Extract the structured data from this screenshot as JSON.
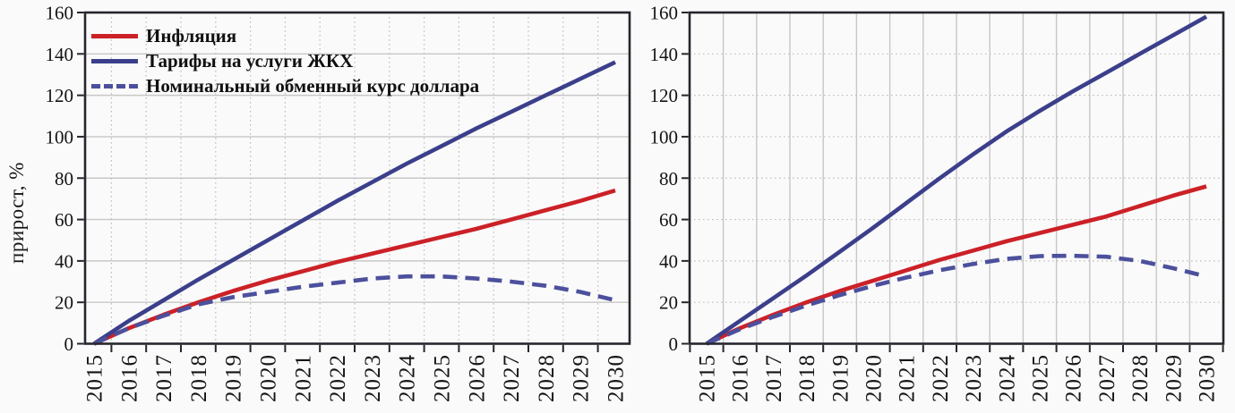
{
  "figure": {
    "ylabel": "прирост, %",
    "colors": {
      "inflation": "#cb2127",
      "tariff": "#3b3f8b",
      "dollar": "#4c509c",
      "axis": "#26262e",
      "grid_solid": "#c7c7c7",
      "grid_dotted": "#bfbfbf",
      "text": "#141414"
    },
    "legend": {
      "items": [
        {
          "label": "Инфляция",
          "series": "inflation",
          "style": "solid"
        },
        {
          "label": "Тарифы на услуги ЖКХ",
          "series": "tariff",
          "style": "solid"
        },
        {
          "label": "Номинальный обменный курс доллара",
          "series": "dollar",
          "style": "dashed"
        }
      ]
    }
  },
  "chart_data": [
    {
      "type": "line",
      "panel": "left",
      "title": "",
      "xlabel": "",
      "ylabel": "прирост, %",
      "x": [
        2015,
        2016,
        2017,
        2018,
        2019,
        2020,
        2021,
        2022,
        2023,
        2024,
        2025,
        2026,
        2027,
        2028,
        2029,
        2030
      ],
      "xticklabels": [
        "2015",
        "2016",
        "2017",
        "2018",
        "2019",
        "2020",
        "2021",
        "2022",
        "2023",
        "2024",
        "2025",
        "2026",
        "2027",
        "2028",
        "2029",
        "2030"
      ],
      "ylim": [
        0,
        160
      ],
      "yticks": [
        0,
        20,
        40,
        60,
        80,
        100,
        120,
        140,
        160
      ],
      "grid": {
        "horizontal": "solid",
        "vertical": "dotted"
      },
      "legend_position": "top-left",
      "series": [
        {
          "name": "Инфляция",
          "key": "inflation",
          "color": "#cb2127",
          "line": "solid",
          "values": [
            0,
            7.5,
            14,
            20,
            25.5,
            30.5,
            35,
            39.5,
            43.5,
            47.5,
            51.5,
            55.5,
            60,
            64.5,
            69,
            74
          ]
        },
        {
          "name": "Тарифы на услуги ЖКХ",
          "key": "tariff",
          "color": "#3b3f8b",
          "line": "solid",
          "values": [
            0,
            11,
            21,
            31,
            40.5,
            50,
            59.5,
            69,
            78,
            87,
            95.5,
            104,
            112,
            120,
            128,
            136
          ]
        },
        {
          "name": "Номинальный обменный курс доллара",
          "key": "dollar",
          "color": "#4c509c",
          "line": "dashed",
          "values": [
            0,
            7.5,
            13.5,
            19,
            22.5,
            25,
            27.5,
            29.5,
            31.5,
            32.5,
            32.5,
            31.5,
            30,
            28,
            25,
            21
          ]
        }
      ]
    },
    {
      "type": "line",
      "panel": "right",
      "title": "",
      "xlabel": "",
      "ylabel": "",
      "x": [
        2015,
        2016,
        2017,
        2018,
        2019,
        2020,
        2021,
        2022,
        2023,
        2024,
        2025,
        2026,
        2027,
        2028,
        2029,
        2030
      ],
      "xticklabels": [
        "2015",
        "2016",
        "2017",
        "2018",
        "2019",
        "2020",
        "2021",
        "2022",
        "2023",
        "2024",
        "2025",
        "2026",
        "2027",
        "2028",
        "2029",
        "2030"
      ],
      "ylim": [
        0,
        160
      ],
      "yticks": [
        0,
        20,
        40,
        60,
        80,
        100,
        120,
        140,
        160
      ],
      "grid": {
        "horizontal": "dotted",
        "vertical": "solid"
      },
      "legend_position": "none",
      "series": [
        {
          "name": "Инфляция",
          "key": "inflation",
          "color": "#cb2127",
          "line": "solid",
          "values": [
            0,
            7.5,
            14,
            20,
            25.5,
            30.5,
            35.5,
            40.5,
            45,
            49.5,
            53.5,
            57.5,
            61.5,
            66.5,
            71.5,
            76
          ]
        },
        {
          "name": "Тарифы на услуги ЖКХ",
          "key": "tariff",
          "color": "#3b3f8b",
          "line": "solid",
          "values": [
            0,
            11,
            22,
            33,
            44.5,
            56,
            68,
            80,
            91.5,
            102.5,
            112.5,
            122,
            131,
            140,
            149,
            158
          ]
        },
        {
          "name": "Номинальный обменный курс доллара",
          "key": "dollar",
          "color": "#4c509c",
          "line": "dashed",
          "values": [
            0,
            7,
            13,
            18.5,
            23.5,
            28,
            32,
            35.5,
            38.5,
            41,
            42.3,
            42.5,
            42,
            40,
            36.5,
            32.5
          ]
        }
      ]
    }
  ]
}
